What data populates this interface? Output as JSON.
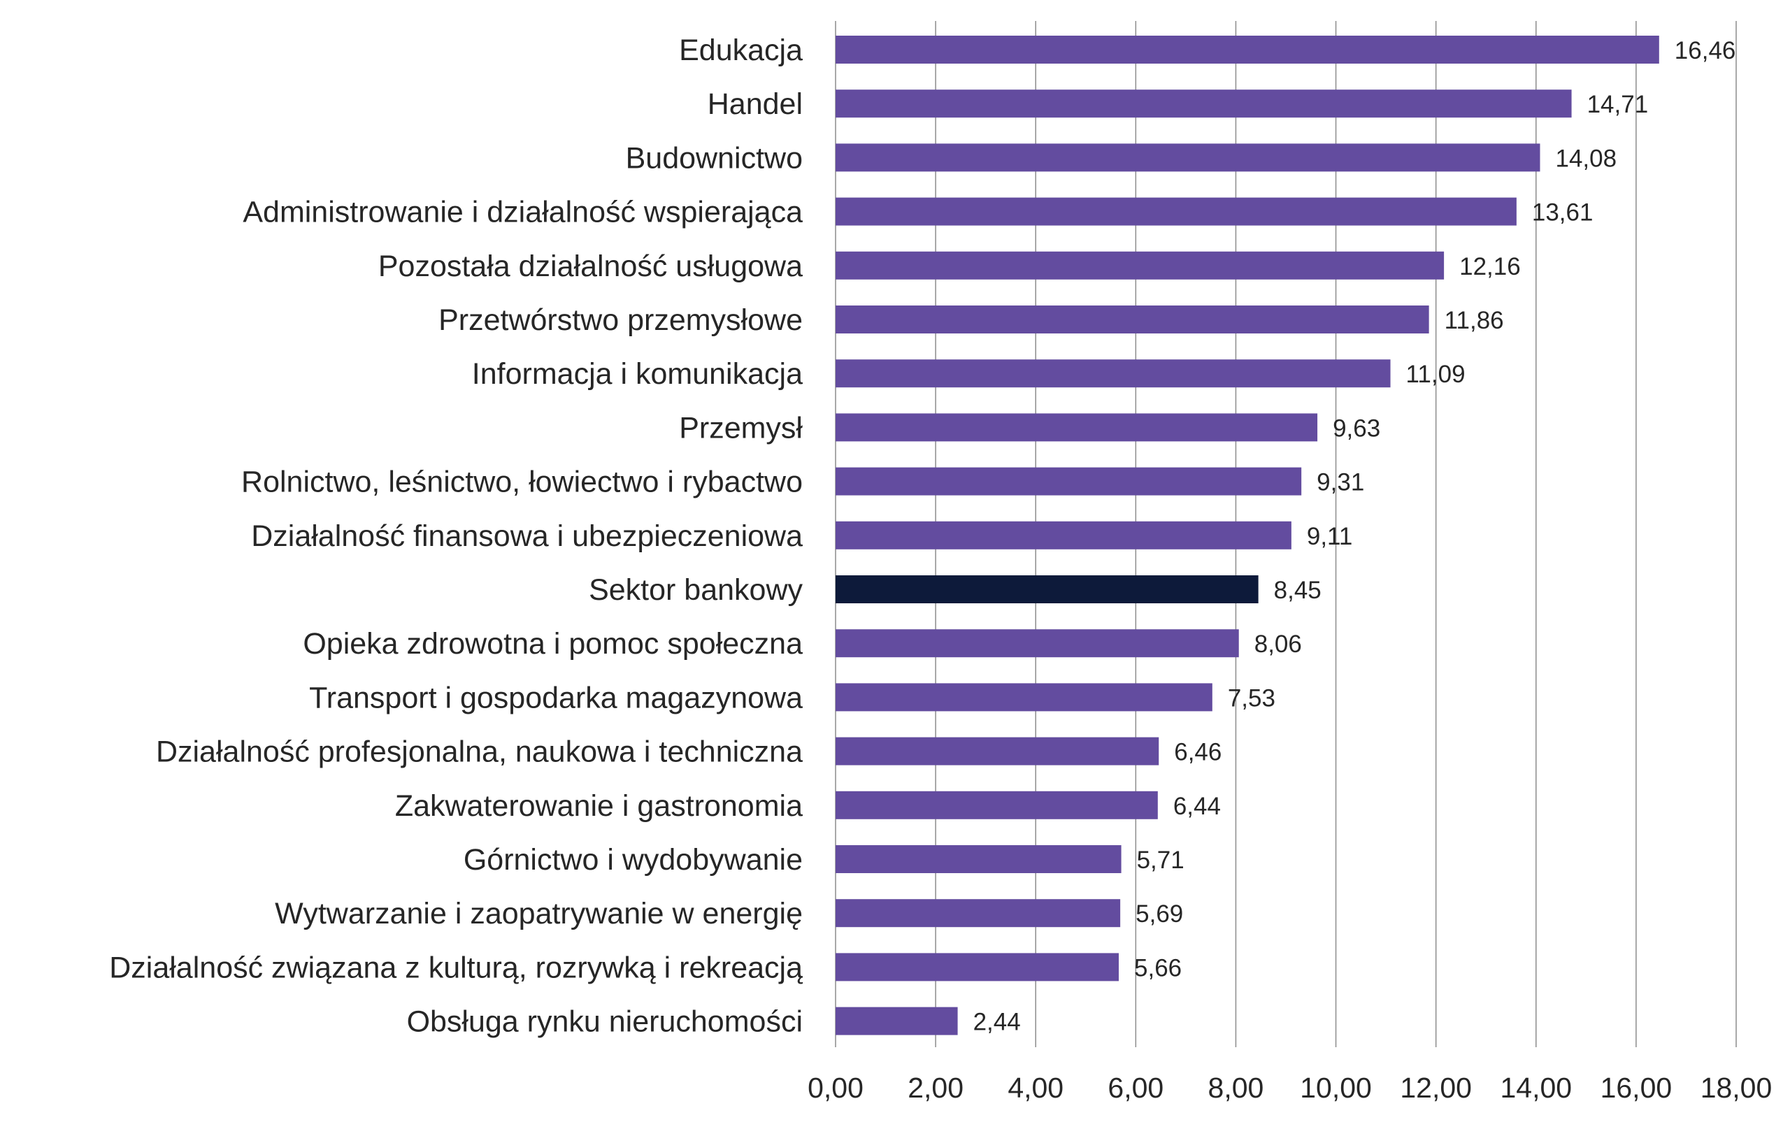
{
  "chart_data": {
    "type": "bar",
    "orientation": "horizontal",
    "categories": [
      "Edukacja",
      "Handel",
      "Budownictwo",
      "Administrowanie i działalność wspierająca",
      "Pozostała działalność usługowa",
      "Przetwórstwo przemysłowe",
      "Informacja i komunikacja",
      "Przemysł",
      "Rolnictwo, leśnictwo, łowiectwo i rybactwo",
      "Działalność finansowa i ubezpieczeniowa",
      "Sektor bankowy",
      "Opieka zdrowotna i pomoc społeczna",
      "Transport i gospodarka magazynowa",
      "Działalność profesjonalna, naukowa i techniczna",
      "Zakwaterowanie i gastronomia",
      "Górnictwo i wydobywanie",
      "Wytwarzanie i zaopatrywanie w  energię",
      "Działalność związana z kulturą, rozrywką i rekreacją",
      "Obsługa rynku nieruchomości"
    ],
    "values": [
      16.46,
      14.71,
      14.08,
      13.61,
      12.16,
      11.86,
      11.09,
      9.63,
      9.31,
      9.11,
      8.45,
      8.06,
      7.53,
      6.46,
      6.44,
      5.71,
      5.69,
      5.66,
      2.44
    ],
    "value_labels": [
      "16,46",
      "14,71",
      "14,08",
      "13,61",
      "12,16",
      "11,86",
      "11,09",
      "9,63",
      "9,31",
      "9,11",
      "8,45",
      "8,06",
      "7,53",
      "6,46",
      "6,44",
      "5,71",
      "5,69",
      "5,66",
      "2,44"
    ],
    "highlight_category": "Sektor bankowy",
    "xlim": [
      0,
      18
    ],
    "x_ticks": [
      0,
      2,
      4,
      6,
      8,
      10,
      12,
      14,
      16,
      18
    ],
    "x_tick_labels": [
      "0,00",
      "2,00",
      "4,00",
      "6,00",
      "8,00",
      "10,00",
      "12,00",
      "14,00",
      "16,00",
      "18,00"
    ],
    "grid": "vertical",
    "legend": "none",
    "title": "",
    "xlabel": "",
    "ylabel": "",
    "colors": {
      "bar": "#634c9f",
      "highlight": "#0d1a3a",
      "grid": "#8c8c8c",
      "text": "#262626"
    }
  }
}
